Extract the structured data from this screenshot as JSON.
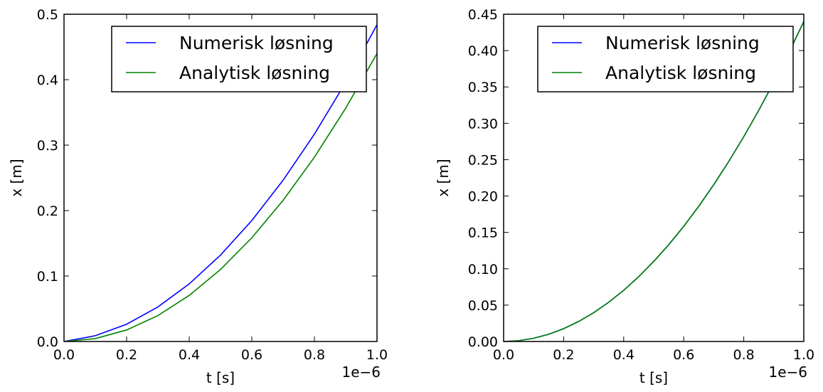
{
  "chart_data": [
    {
      "type": "line",
      "xlabel": "t [s]",
      "ylabel": "x [m]",
      "x_offset_label": "1e−6",
      "xlim": [
        0.0,
        1.0
      ],
      "ylim": [
        0.0,
        0.5
      ],
      "xticks": [
        "0.0",
        "0.2",
        "0.4",
        "0.6",
        "0.8",
        "1.0"
      ],
      "yticks": [
        "0.0",
        "0.1",
        "0.2",
        "0.3",
        "0.4",
        "0.5"
      ],
      "grid": false,
      "legend_position": "top-right",
      "series": [
        {
          "name": "Numerisk løsning",
          "color": "#0000ff",
          "x": [
            0.0,
            0.1,
            0.2,
            0.3,
            0.4,
            0.5,
            0.6,
            0.7,
            0.8,
            0.9,
            1.0
          ],
          "y": [
            0.0,
            0.0088,
            0.0264,
            0.0528,
            0.088,
            0.132,
            0.1848,
            0.2464,
            0.3168,
            0.396,
            0.484
          ]
        },
        {
          "name": "Analytisk løsning",
          "color": "#008000",
          "x": [
            0.0,
            0.1,
            0.2,
            0.3,
            0.4,
            0.5,
            0.6,
            0.7,
            0.8,
            0.9,
            1.0
          ],
          "y": [
            0.0,
            0.0044,
            0.0176,
            0.0396,
            0.0704,
            0.11,
            0.1584,
            0.2156,
            0.2816,
            0.3564,
            0.44
          ]
        }
      ]
    },
    {
      "type": "line",
      "xlabel": "t [s]",
      "ylabel": "x [m]",
      "x_offset_label": "1e−6",
      "xlim": [
        0.0,
        1.0
      ],
      "ylim": [
        0.0,
        0.45
      ],
      "xticks": [
        "0.0",
        "0.2",
        "0.4",
        "0.6",
        "0.8",
        "1.0"
      ],
      "yticks": [
        "0.00",
        "0.05",
        "0.10",
        "0.15",
        "0.20",
        "0.25",
        "0.30",
        "0.35",
        "0.40",
        "0.45"
      ],
      "grid": false,
      "legend_position": "top-right",
      "series": [
        {
          "name": "Numerisk løsning",
          "color": "#0000ff",
          "x": [
            0.0,
            0.05,
            0.1,
            0.15,
            0.2,
            0.25,
            0.3,
            0.35,
            0.4,
            0.45,
            0.5,
            0.55,
            0.6,
            0.65,
            0.7,
            0.75,
            0.8,
            0.85,
            0.9,
            0.95,
            1.0
          ],
          "y": [
            0.0,
            0.0011,
            0.0044,
            0.0099,
            0.0176,
            0.0275,
            0.0396,
            0.0539,
            0.0704,
            0.0891,
            0.11,
            0.1331,
            0.1584,
            0.1859,
            0.2156,
            0.2475,
            0.2816,
            0.3179,
            0.3564,
            0.3971,
            0.44
          ]
        },
        {
          "name": "Analytisk løsning",
          "color": "#008000",
          "x": [
            0.0,
            0.05,
            0.1,
            0.15,
            0.2,
            0.25,
            0.3,
            0.35,
            0.4,
            0.45,
            0.5,
            0.55,
            0.6,
            0.65,
            0.7,
            0.75,
            0.8,
            0.85,
            0.9,
            0.95,
            1.0
          ],
          "y": [
            0.0,
            0.0011,
            0.0044,
            0.0099,
            0.0176,
            0.0275,
            0.0396,
            0.0539,
            0.0704,
            0.0891,
            0.11,
            0.1331,
            0.1584,
            0.1859,
            0.2156,
            0.2475,
            0.2816,
            0.3179,
            0.3564,
            0.3971,
            0.44
          ]
        }
      ]
    }
  ]
}
